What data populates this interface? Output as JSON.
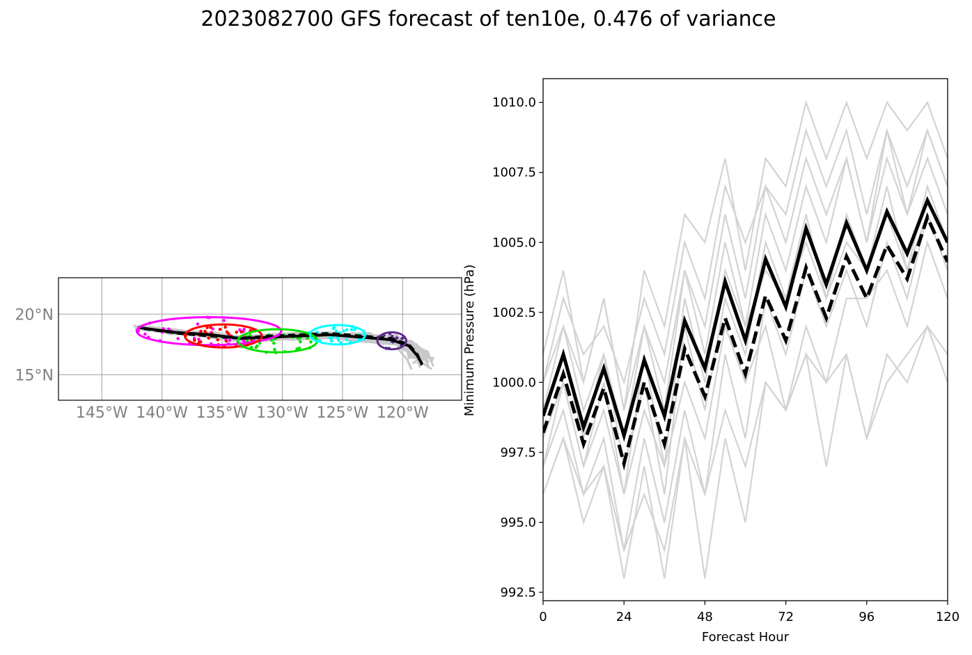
{
  "figure": {
    "title": "2023082700 GFS forecast of ten10e, 0.476 of variance"
  },
  "chart_data": [
    {
      "type": "map",
      "lon_range": [
        -148.6,
        -115.1
      ],
      "lat_range": [
        12.9,
        23.0
      ],
      "xticks": [
        {
          "value": -145,
          "label": "145°W"
        },
        {
          "value": -140,
          "label": "140°W"
        },
        {
          "value": -135,
          "label": "135°W"
        },
        {
          "value": -130,
          "label": "130°W"
        },
        {
          "value": -125,
          "label": "125°W"
        },
        {
          "value": -120,
          "label": "120°W"
        }
      ],
      "yticks": [
        {
          "value": 20,
          "label": "20°N"
        },
        {
          "value": 15,
          "label": "15°N"
        }
      ],
      "grid": true,
      "mean_track": [
        [
          -142,
          18.9
        ],
        [
          -139,
          18.5
        ],
        [
          -136,
          18.3
        ],
        [
          -133.5,
          18.0
        ],
        [
          -131,
          18.1
        ],
        [
          -128.5,
          18.2
        ],
        [
          -126,
          18.3
        ],
        [
          -123.5,
          18.1
        ],
        [
          -121,
          17.9
        ],
        [
          -119.5,
          17.4
        ],
        [
          -118.8,
          16.6
        ],
        [
          -118.4,
          15.9
        ]
      ],
      "control_track": [
        [
          -141.5,
          18.8
        ],
        [
          -138.5,
          18.4
        ],
        [
          -136,
          18.2
        ],
        [
          -133.5,
          18.0
        ],
        [
          -131,
          18.2
        ],
        [
          -128.5,
          18.3
        ],
        [
          -126,
          18.4
        ],
        [
          -123.5,
          18.2
        ],
        [
          -121,
          18.0
        ],
        [
          -119.5,
          17.5
        ],
        [
          -118.8,
          16.7
        ],
        [
          -118.4,
          15.8
        ]
      ],
      "ellipses": [
        {
          "color": "#ff00ff",
          "center": [
            -136.1,
            18.6
          ],
          "semi_axes": [
            6.0,
            1.15
          ]
        },
        {
          "color": "#ff0000",
          "center": [
            -134.9,
            18.2
          ],
          "semi_axes": [
            3.2,
            0.95
          ]
        },
        {
          "color": "#00e000",
          "center": [
            -130.4,
            17.8
          ],
          "semi_axes": [
            3.3,
            0.95
          ]
        },
        {
          "color": "#00ffff",
          "center": [
            -125.4,
            18.3
          ],
          "semi_axes": [
            2.3,
            0.8
          ]
        },
        {
          "color": "#5b2a8e",
          "center": [
            -120.9,
            17.8
          ],
          "semi_axes": [
            1.2,
            0.7
          ]
        }
      ]
    },
    {
      "type": "line",
      "xlabel": "Forecast Hour",
      "ylabel": "Minimum Pressure (hPa)",
      "xlim": [
        0,
        120
      ],
      "ylim": [
        992.2,
        1010.85
      ],
      "xticks": [
        0,
        24,
        48,
        72,
        96,
        120
      ],
      "ytick_values": [
        992.5,
        995.0,
        997.5,
        1000.0,
        1002.5,
        1005.0,
        1007.5,
        1010.0
      ],
      "ytick_labels": [
        "992.5",
        "995.0",
        "997.5",
        "1000.0",
        "1002.5",
        "1005.0",
        "1007.5",
        "1010.0"
      ],
      "x": [
        0,
        6,
        12,
        18,
        24,
        30,
        36,
        42,
        48,
        54,
        60,
        66,
        72,
        78,
        84,
        90,
        96,
        102,
        108,
        114,
        120
      ],
      "series": [
        {
          "style": "mean",
          "values": [
            998.8,
            1001.0,
            998.4,
            1000.5,
            998.1,
            1000.8,
            998.8,
            1002.2,
            1000.5,
            1003.6,
            1001.5,
            1004.4,
            1002.7,
            1005.5,
            1003.5,
            1005.7,
            1004.0,
            1006.1,
            1004.6,
            1006.5,
            1005.0
          ]
        },
        {
          "style": "control",
          "values": [
            998.2,
            1000.3,
            997.8,
            999.8,
            997.1,
            1000.0,
            997.8,
            1001.2,
            999.5,
            1002.3,
            1000.3,
            1003.1,
            1001.5,
            1004.1,
            1002.3,
            1004.5,
            1003.0,
            1004.9,
            1003.7,
            1005.9,
            1004.3
          ]
        },
        {
          "style": "member",
          "values": [
            1001,
            1004,
            1000,
            1003,
            999,
            1004,
            1002,
            1006,
            1005,
            1008,
            1004,
            1008,
            1007,
            1010,
            1008,
            1010,
            1008,
            1010,
            1009,
            1010,
            1008
          ]
        },
        {
          "style": "member",
          "values": [
            996,
            998,
            995,
            997,
            993,
            997,
            993,
            998,
            993,
            998,
            995,
            1000,
            999,
            1001,
            997,
            1001,
            998,
            1001,
            1000,
            1002,
            1000
          ]
        },
        {
          "style": "member",
          "values": [
            1000,
            1003,
            1001,
            1002,
            1000,
            1003,
            1001,
            1005,
            1003,
            1007,
            1005,
            1007,
            1006,
            1009,
            1007,
            1009,
            1006,
            1009,
            1007,
            1009,
            1007
          ]
        },
        {
          "style": "member",
          "values": [
            997,
            999,
            996,
            998,
            994,
            998,
            995,
            999,
            996,
            1001,
            998,
            1003,
            1001,
            1004,
            1002,
            1004,
            1002,
            1005,
            1003,
            1006,
            1004
          ]
        },
        {
          "style": "member",
          "values": [
            999,
            1002,
            999,
            1001,
            998,
            1002,
            1000,
            1004,
            1001,
            1005,
            1002,
            1006,
            1004,
            1007,
            1005,
            1008,
            1005,
            1008,
            1006,
            1008,
            1006
          ]
        },
        {
          "style": "member",
          "values": [
            998,
            1000,
            997,
            999,
            996,
            999,
            997,
            1000,
            998,
            1002,
            1000,
            1002,
            999,
            1002,
            1000,
            1003,
            1003,
            1004,
            1002,
            1005,
            1003
          ]
        },
        {
          "style": "member",
          "values": [
            999,
            1001,
            998,
            1001,
            997,
            1000,
            996,
            1002,
            999,
            1003,
            1001,
            1005,
            1003,
            1006,
            1003,
            1006,
            1004,
            1007,
            1004,
            1007,
            1005
          ]
        },
        {
          "style": "member",
          "values": [
            997,
            1000,
            997,
            1000,
            996,
            1001,
            997,
            1003,
            1000,
            1004,
            1002,
            1004,
            1003,
            1005,
            1003,
            1005,
            1004,
            1006,
            1004,
            1006,
            1004
          ]
        },
        {
          "style": "member",
          "values": [
            1000,
            1002,
            1000,
            1003,
            999,
            1002,
            999,
            1004,
            1002,
            1006,
            1003,
            1007,
            1005,
            1008,
            1006,
            1008,
            1005,
            1009,
            1006,
            1009,
            1007
          ]
        },
        {
          "style": "member",
          "values": [
            996,
            998,
            996,
            997,
            994,
            996,
            994,
            998,
            996,
            999,
            997,
            1000,
            999,
            1001,
            1000,
            1001,
            998,
            1000,
            1001,
            1002,
            1001
          ]
        }
      ]
    }
  ]
}
